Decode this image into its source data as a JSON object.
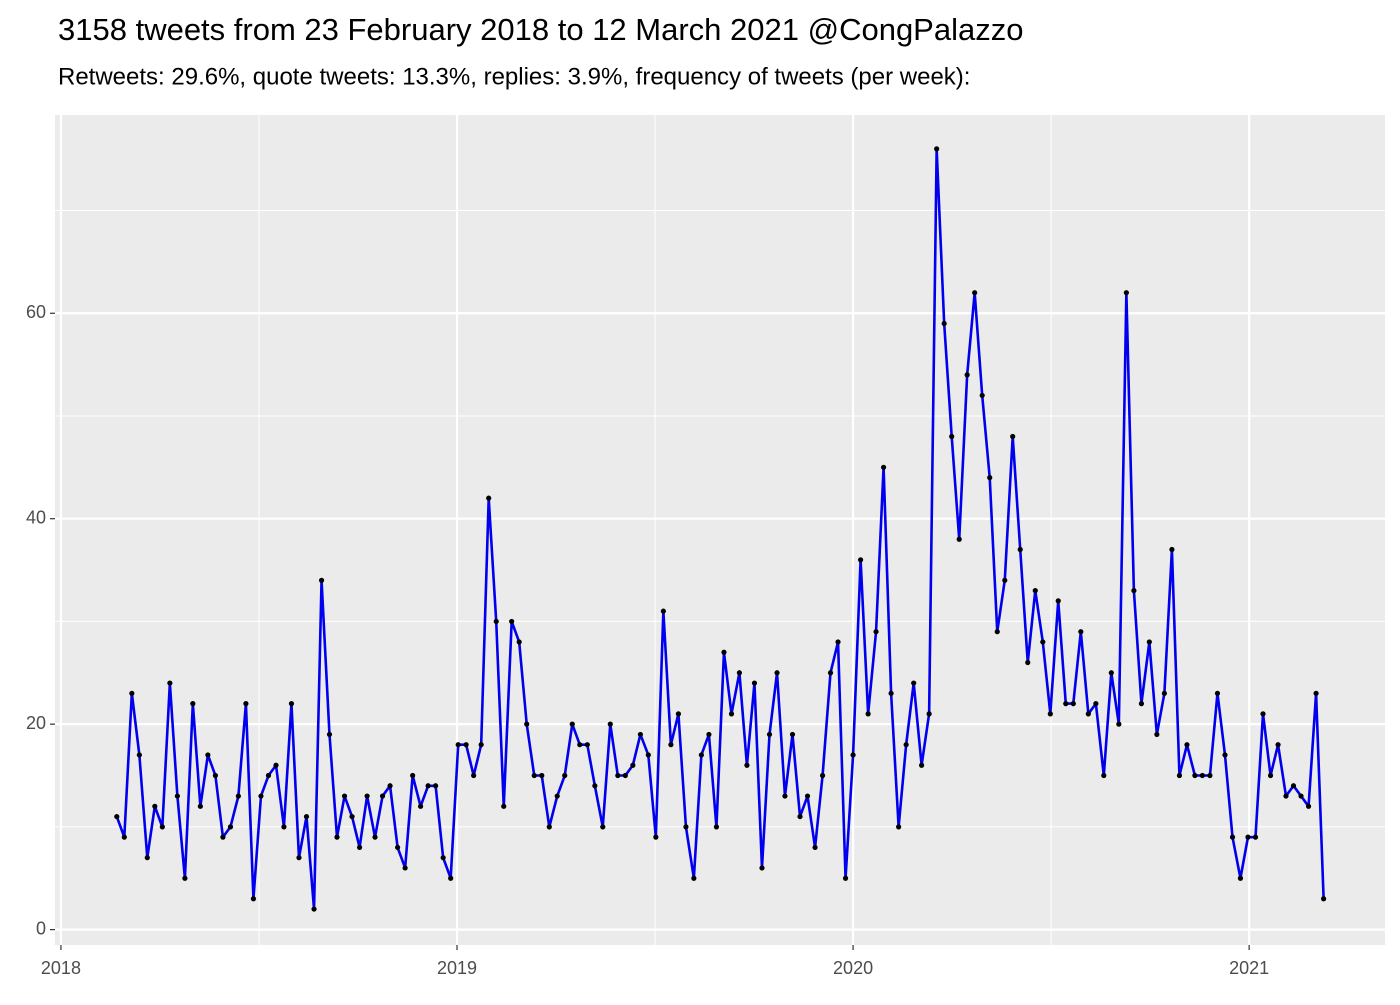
{
  "chart_data": {
    "type": "line",
    "title": "3158 tweets from 23 February 2018 to 12 March 2021 @CongPalazzo",
    "subtitle": "Retweets: 29.6%, quote tweets: 13.3%, replies: 3.9%, frequency of tweets (per week):",
    "x": [
      2018.141,
      2018.16,
      2018.179,
      2018.198,
      2018.218,
      2018.237,
      2018.256,
      2018.275,
      2018.294,
      2018.313,
      2018.333,
      2018.352,
      2018.371,
      2018.39,
      2018.409,
      2018.428,
      2018.448,
      2018.467,
      2018.486,
      2018.505,
      2018.524,
      2018.543,
      2018.563,
      2018.582,
      2018.601,
      2018.62,
      2018.639,
      2018.658,
      2018.678,
      2018.697,
      2018.716,
      2018.735,
      2018.754,
      2018.773,
      2018.793,
      2018.812,
      2018.831,
      2018.85,
      2018.869,
      2018.888,
      2018.908,
      2018.927,
      2018.946,
      2018.965,
      2018.984,
      2019.003,
      2019.023,
      2019.042,
      2019.061,
      2019.08,
      2019.099,
      2019.118,
      2019.138,
      2019.157,
      2019.176,
      2019.195,
      2019.214,
      2019.233,
      2019.253,
      2019.272,
      2019.291,
      2019.31,
      2019.329,
      2019.348,
      2019.368,
      2019.387,
      2019.406,
      2019.425,
      2019.444,
      2019.463,
      2019.483,
      2019.502,
      2019.521,
      2019.54,
      2019.559,
      2019.578,
      2019.598,
      2019.617,
      2019.636,
      2019.655,
      2019.674,
      2019.693,
      2019.713,
      2019.732,
      2019.751,
      2019.77,
      2019.789,
      2019.808,
      2019.828,
      2019.847,
      2019.866,
      2019.885,
      2019.904,
      2019.923,
      2019.943,
      2019.962,
      2019.981,
      2020.0,
      2020.019,
      2020.038,
      2020.058,
      2020.077,
      2020.096,
      2020.115,
      2020.134,
      2020.153,
      2020.173,
      2020.192,
      2020.211,
      2020.23,
      2020.249,
      2020.268,
      2020.288,
      2020.307,
      2020.326,
      2020.345,
      2020.364,
      2020.383,
      2020.403,
      2020.422,
      2020.441,
      2020.46,
      2020.479,
      2020.498,
      2020.518,
      2020.537,
      2020.556,
      2020.575,
      2020.594,
      2020.613,
      2020.633,
      2020.652,
      2020.671,
      2020.69,
      2020.709,
      2020.728,
      2020.748,
      2020.767,
      2020.786,
      2020.805,
      2020.824,
      2020.843,
      2020.863,
      2020.882,
      2020.901,
      2020.92,
      2020.939,
      2020.958,
      2020.978,
      2020.997,
      2021.016,
      2021.035,
      2021.054,
      2021.073,
      2021.093,
      2021.112,
      2021.131,
      2021.15,
      2021.169,
      2021.188
    ],
    "series": [
      {
        "color": "#0000ee",
        "marker_color": "#000000",
        "values": [
          11,
          9,
          23,
          17,
          7,
          12,
          10,
          24,
          13,
          5,
          22,
          12,
          17,
          15,
          9,
          10,
          13,
          22,
          3,
          13,
          15,
          16,
          10,
          22,
          7,
          11,
          2,
          34,
          19,
          9,
          13,
          11,
          8,
          13,
          9,
          13,
          14,
          8,
          6,
          15,
          12,
          14,
          14,
          7,
          5,
          18,
          18,
          15,
          18,
          42,
          30,
          12,
          30,
          28,
          20,
          15,
          15,
          10,
          13,
          15,
          20,
          18,
          18,
          14,
          10,
          20,
          15,
          15,
          16,
          19,
          17,
          9,
          31,
          18,
          21,
          10,
          5,
          17,
          19,
          10,
          27,
          21,
          25,
          16,
          24,
          6,
          19,
          25,
          13,
          19,
          11,
          13,
          8,
          15,
          25,
          28,
          5,
          17,
          36,
          21,
          29,
          45,
          23,
          10,
          18,
          24,
          16,
          21,
          76,
          59,
          48,
          38,
          54,
          62,
          52,
          44,
          29,
          34,
          48,
          37,
          26,
          33,
          28,
          21,
          32,
          22,
          22,
          29,
          21,
          22,
          15,
          25,
          20,
          62,
          33,
          22,
          28,
          19,
          23,
          37,
          15,
          18,
          15,
          15,
          15,
          23,
          17,
          9,
          5,
          9,
          9,
          21,
          15,
          18,
          13,
          14,
          13,
          12,
          23,
          3
        ]
      }
    ],
    "xlim": [
      2017.985,
      2021.343
    ],
    "xticks": [
      2018,
      2019,
      2020,
      2021
    ],
    "ylim": [
      -1.5,
      79.3
    ],
    "yticks": [
      0,
      20,
      40,
      60
    ],
    "grid": true
  }
}
